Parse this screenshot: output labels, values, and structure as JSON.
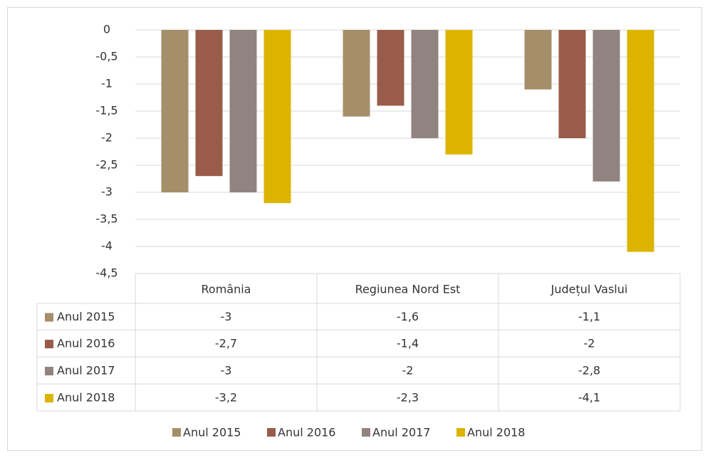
{
  "chart_data": {
    "type": "bar",
    "categories": [
      "România",
      "Regiunea Nord Est",
      "Județul Vaslui"
    ],
    "series": [
      {
        "name": "Anul 2015",
        "color": "#a48f6a",
        "values": [
          -3,
          -1.6,
          -1.1
        ],
        "value_labels": [
          "-3",
          "-1,6",
          "-1,1"
        ]
      },
      {
        "name": "Anul 2016",
        "color": "#9a5c4a",
        "values": [
          -2.7,
          -1.4,
          -2
        ],
        "value_labels": [
          "-2,7",
          "-1,4",
          "-2"
        ]
      },
      {
        "name": "Anul 2017",
        "color": "#918480",
        "values": [
          -3,
          -2,
          -2.8
        ],
        "value_labels": [
          "-3",
          "-2",
          "-2,8"
        ]
      },
      {
        "name": "Anul 2018",
        "color": "#dcb400",
        "values": [
          -3.2,
          -2.3,
          -4.1
        ],
        "value_labels": [
          "-3,2",
          "-2,3",
          "-4,1"
        ]
      }
    ],
    "ylim": [
      -4.5,
      0
    ],
    "yticks": [
      0,
      {
        "value": -0.5,
        "label": "-0,5"
      },
      -1,
      {
        "value": -1.5,
        "label": "-1,5"
      },
      -2,
      {
        "value": -2.5,
        "label": "-2,5"
      },
      -3,
      {
        "value": -3.5,
        "label": "-3,5"
      },
      -4,
      {
        "value": -4.5,
        "label": "-4,5"
      }
    ],
    "grid": true,
    "legend": "bottom"
  }
}
